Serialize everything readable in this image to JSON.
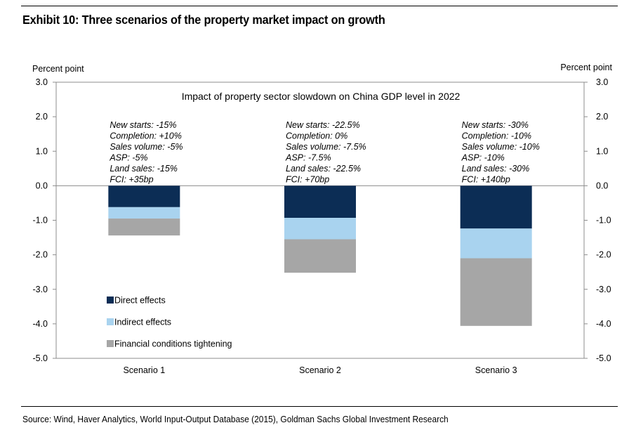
{
  "exhibit_title": "Exhibit 10: Three scenarios of the property market impact on growth",
  "source": "Source: Wind, Haver Analytics, World Input-Output Database (2015), Goldman Sachs Global Investment Research",
  "chart_data": {
    "type": "bar",
    "stacked": true,
    "title": "Impact of property sector slowdown on China GDP level in 2022",
    "ylabel_left": "Percent point",
    "ylabel_right": "Percent point",
    "ylim": [
      -5.0,
      3.0
    ],
    "yticks": [
      "3.0",
      "2.0",
      "1.0",
      "0.0",
      "-1.0",
      "-2.0",
      "-3.0",
      "-4.0",
      "-5.0"
    ],
    "categories": [
      "Scenario 1",
      "Scenario 2",
      "Scenario 3"
    ],
    "series": [
      {
        "name": "Direct effects",
        "color": "#0c2d55",
        "values": [
          -0.62,
          -0.93,
          -1.24
        ]
      },
      {
        "name": "Indirect effects",
        "color": "#a9d3ef",
        "values": [
          -0.33,
          -0.62,
          -0.86
        ]
      },
      {
        "name": "Financial conditions tightening",
        "color": "#a6a6a6",
        "values": [
          -0.49,
          -0.97,
          -1.96
        ]
      }
    ],
    "annotations": [
      [
        "New starts: -15%",
        "Completion: +10%",
        "Sales volume: -5%",
        "ASP: -5%",
        "Land sales: -15%",
        "FCI: +35bp"
      ],
      [
        "New starts: -22.5%",
        "Completion: 0%",
        "Sales volume: -7.5%",
        "ASP: -7.5%",
        "Land sales: -22.5%",
        "FCI: +70bp"
      ],
      [
        "New starts: -30%",
        "Completion: -10%",
        "Sales volume: -10%",
        "ASP: -10%",
        "Land sales: -30%",
        "FCI: +140bp"
      ]
    ]
  }
}
